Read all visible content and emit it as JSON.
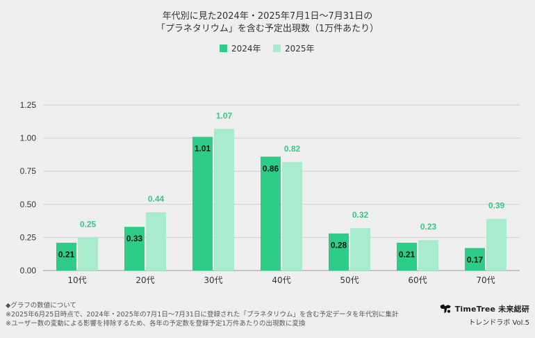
{
  "colors": {
    "series_2024": "#2ecc87",
    "series_2025": "#a8ebcd",
    "label_2025": "#3dc58a",
    "grid": "#cfcfcf",
    "background": "#efefef"
  },
  "chart_data": {
    "type": "bar",
    "title": [
      "年代別に見た2024年・2025年7月1日〜7月31日の",
      "「プラネタリウム」を含む予定出現数（1万件あたり）"
    ],
    "categories": [
      "10代",
      "20代",
      "30代",
      "40代",
      "50代",
      "60代",
      "70代"
    ],
    "series": [
      {
        "name": "2024年",
        "values": [
          0.21,
          0.33,
          1.01,
          0.86,
          0.28,
          0.21,
          0.17
        ]
      },
      {
        "name": "2025年",
        "values": [
          0.25,
          0.44,
          1.07,
          0.82,
          0.32,
          0.23,
          0.39
        ]
      }
    ],
    "yticks": [
      "0.00",
      "0.25",
      "0.50",
      "0.75",
      "1.00",
      "1.25"
    ],
    "ylim": [
      0,
      1.25
    ],
    "grid": true,
    "legend": "top-center"
  },
  "footer": {
    "line1": "◆グラフの数値について",
    "line2": "※2025年6月25日時点で、2024年・2025年の7月1日〜7月31日に登録された「プラネタリウム」を含む予定データを年代別に集計",
    "line3": "※ユーザー数の変動による影響を排除するため、各年の予定数を登録予定1万件あたりの出現数に変換"
  },
  "brand": {
    "name": "TimeTree 未来総研",
    "sub": "トレンドラボ Vol.5",
    "icon": "timetree-logo-icon"
  }
}
